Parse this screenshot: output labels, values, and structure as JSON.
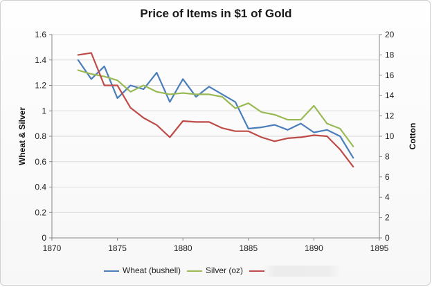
{
  "chart_data": {
    "type": "line",
    "title": "Price of Items in $1 of Gold",
    "ylabel": "Wheat & Silver",
    "y2label": "Cotton",
    "xlim": [
      1870,
      1895
    ],
    "ylim": [
      0,
      1.6
    ],
    "y2lim": [
      0,
      20
    ],
    "xticks": [
      "1870",
      "1875",
      "1880",
      "1885",
      "1890",
      "1895"
    ],
    "yticks": [
      "0",
      "0.2",
      "0.4",
      "0.6",
      "0.8",
      "1",
      "1.2",
      "1.4",
      "1.6"
    ],
    "y2ticks": [
      "0",
      "2",
      "4",
      "6",
      "8",
      "10",
      "12",
      "14",
      "16",
      "18",
      "20"
    ],
    "grid": true,
    "legend_position": "bottom",
    "series": [
      {
        "name": "Wheat (bushell)",
        "axis": "left",
        "color": "#4a7ebb",
        "x": [
          1872,
          1873,
          1874,
          1875,
          1876,
          1877,
          1878,
          1879,
          1880,
          1881,
          1882,
          1883,
          1884,
          1885,
          1886,
          1887,
          1888,
          1889,
          1890,
          1891,
          1892,
          1893
        ],
        "y": [
          1.4,
          1.25,
          1.35,
          1.1,
          1.2,
          1.17,
          1.3,
          1.07,
          1.25,
          1.11,
          1.19,
          1.13,
          1.07,
          0.86,
          0.87,
          0.89,
          0.85,
          0.9,
          0.83,
          0.85,
          0.8,
          0.63
        ]
      },
      {
        "name": "Silver (oz)",
        "axis": "left",
        "color": "#98b954",
        "x": [
          1872,
          1873,
          1874,
          1875,
          1876,
          1877,
          1878,
          1879,
          1880,
          1881,
          1882,
          1883,
          1884,
          1885,
          1886,
          1887,
          1888,
          1889,
          1890,
          1891,
          1892,
          1893
        ],
        "y": [
          1.32,
          1.29,
          1.27,
          1.24,
          1.15,
          1.2,
          1.15,
          1.13,
          1.14,
          1.13,
          1.13,
          1.11,
          1.02,
          1.06,
          0.99,
          0.97,
          0.93,
          0.93,
          1.04,
          0.9,
          0.86,
          0.72
        ]
      },
      {
        "name": "",
        "axis": "right",
        "color": "#be4b48",
        "x": [
          1872,
          1873,
          1874,
          1875,
          1876,
          1877,
          1878,
          1879,
          1880,
          1881,
          1882,
          1883,
          1884,
          1885,
          1886,
          1887,
          1888,
          1889,
          1890,
          1891,
          1892,
          1893
        ],
        "y": [
          18.0,
          18.2,
          15.0,
          15.0,
          12.8,
          11.8,
          11.1,
          9.9,
          11.5,
          11.4,
          11.4,
          10.8,
          10.5,
          10.5,
          9.9,
          9.5,
          9.8,
          9.9,
          10.1,
          10.0,
          8.7,
          7.0
        ]
      }
    ]
  }
}
